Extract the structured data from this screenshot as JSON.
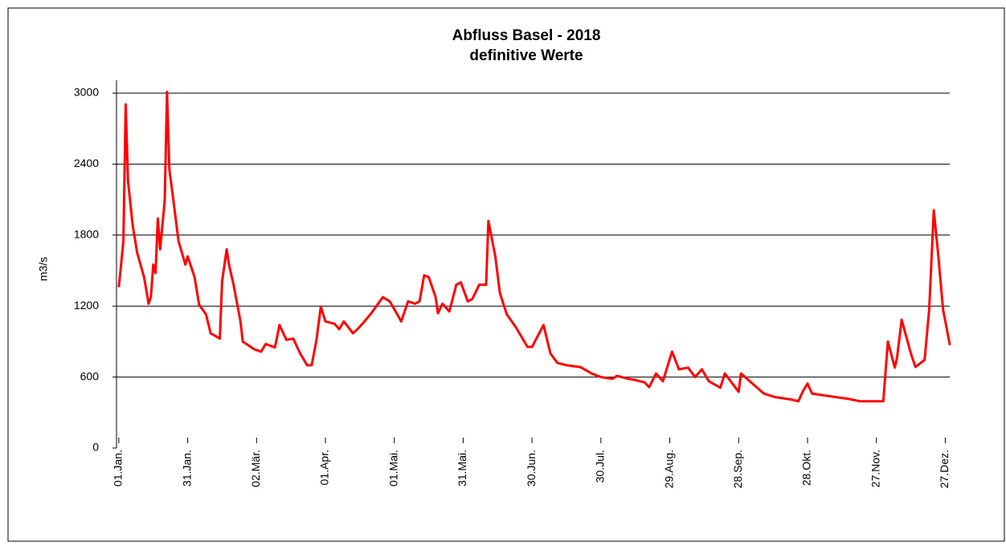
{
  "chart_data": {
    "type": "line",
    "title": "Abfluss Basel - 2018",
    "subtitle": "definitive Werte",
    "y_label": "m3/s",
    "x": [
      1,
      2,
      3,
      4,
      5,
      7,
      9,
      12,
      14,
      15,
      16,
      17,
      18,
      19,
      21,
      22,
      23,
      25,
      27,
      30,
      31,
      34,
      36,
      39,
      41,
      45,
      46,
      48,
      49,
      51,
      54,
      55,
      60,
      63,
      65,
      69,
      71,
      74,
      77,
      80,
      83,
      85,
      87,
      89,
      91,
      95,
      97,
      99,
      103,
      105,
      108,
      111,
      116,
      119,
      122,
      124,
      127,
      130,
      132,
      134,
      136,
      139,
      140,
      142,
      145,
      148,
      150,
      153,
      155,
      158,
      161,
      162,
      165,
      167,
      170,
      174,
      179,
      181,
      186,
      189,
      192,
      196,
      202,
      207,
      211,
      216,
      218,
      223,
      226,
      230,
      232,
      235,
      238,
      242,
      245,
      249,
      252,
      255,
      258,
      263,
      265,
      271,
      272,
      277,
      282,
      287,
      294,
      297,
      299,
      301,
      303,
      310,
      319,
      324,
      330,
      334,
      336,
      339,
      340,
      342,
      346,
      348,
      352,
      354,
      356,
      358,
      360,
      363
    ],
    "series": [
      {
        "name": "Abfluss",
        "color": "#ff0000",
        "values": [
          1360,
          1550,
          1750,
          2905,
          2260,
          1890,
          1650,
          1445,
          1220,
          1280,
          1550,
          1480,
          1940,
          1680,
          2090,
          3010,
          2360,
          2060,
          1750,
          1550,
          1620,
          1445,
          1210,
          1130,
          970,
          925,
          1410,
          1680,
          1550,
          1380,
          1070,
          900,
          835,
          815,
          880,
          850,
          1040,
          915,
          925,
          800,
          700,
          700,
          900,
          1195,
          1070,
          1050,
          1005,
          1070,
          970,
          1005,
          1070,
          1140,
          1275,
          1240,
          1140,
          1070,
          1240,
          1220,
          1240,
          1460,
          1445,
          1275,
          1140,
          1220,
          1155,
          1380,
          1400,
          1240,
          1260,
          1380,
          1380,
          1920,
          1620,
          1310,
          1130,
          1020,
          855,
          855,
          1040,
          800,
          720,
          700,
          685,
          630,
          600,
          585,
          610,
          585,
          575,
          555,
          515,
          630,
          565,
          815,
          665,
          680,
          600,
          665,
          565,
          510,
          630,
          475,
          630,
          545,
          460,
          430,
          410,
          395,
          480,
          545,
          460,
          440,
          415,
          395,
          395,
          395,
          900,
          680,
          765,
          1085,
          800,
          685,
          745,
          1175,
          2010,
          1620,
          1175,
          870
        ]
      }
    ],
    "xlim": [
      0,
      364
    ],
    "xticks": [
      {
        "value": 1,
        "label": "01.Jan."
      },
      {
        "value": 31,
        "label": "31.Jan."
      },
      {
        "value": 61,
        "label": "02.Mär."
      },
      {
        "value": 91,
        "label": "01.Apr."
      },
      {
        "value": 121,
        "label": "01.Mai."
      },
      {
        "value": 151,
        "label": "31.Mai."
      },
      {
        "value": 181,
        "label": "30.Jun."
      },
      {
        "value": 211,
        "label": "30.Jul."
      },
      {
        "value": 241,
        "label": "29.Aug."
      },
      {
        "value": 271,
        "label": "28.Sep."
      },
      {
        "value": 301,
        "label": "28.Okt."
      },
      {
        "value": 331,
        "label": "27.Nov."
      },
      {
        "value": 361,
        "label": "27.Dez."
      }
    ],
    "ylim": [
      0,
      3000
    ],
    "yticks": [
      0,
      600,
      1200,
      1800,
      2400,
      3000
    ],
    "grid": true
  }
}
